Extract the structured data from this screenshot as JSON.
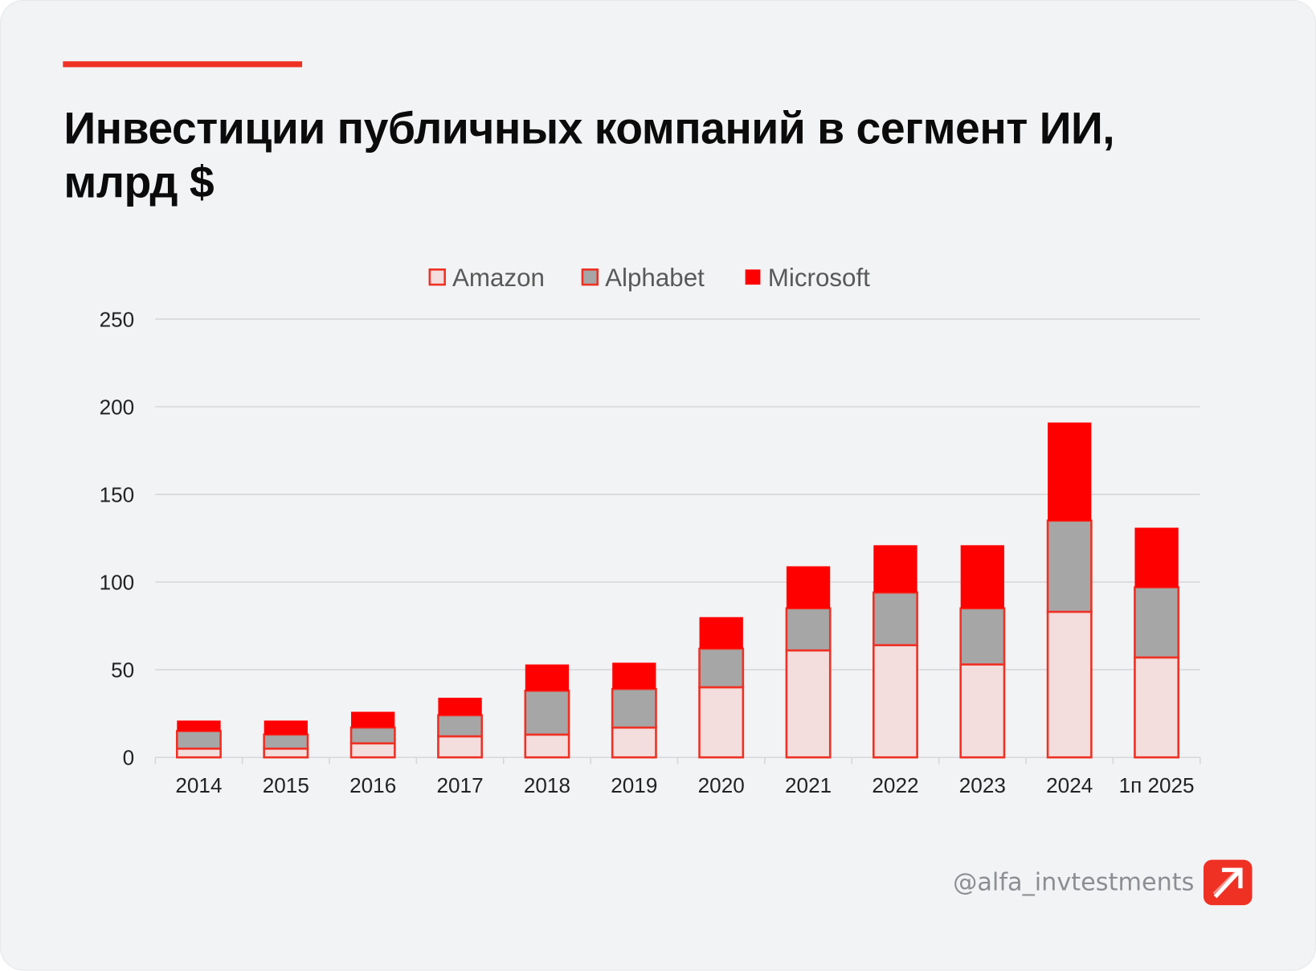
{
  "title": "Инвестиции публичных компаний в сегмент ИИ, млрд $",
  "watermark": "@alfa_invtestments",
  "colors": {
    "accent": "#ef3124",
    "amazon": "#f3dddd",
    "alphabet": "#a6a6a6",
    "microsoft": "#ff0000",
    "outline": "#ef3124"
  },
  "chart_data": {
    "type": "bar",
    "stacked": true,
    "title": "Инвестиции публичных компаний в сегмент ИИ, млрд $",
    "xlabel": "",
    "ylabel": "",
    "ylim": [
      0,
      250
    ],
    "yticks": [
      0,
      50,
      100,
      150,
      200,
      250
    ],
    "grid": true,
    "legend_position": "top-center",
    "categories": [
      "2014",
      "2015",
      "2016",
      "2017",
      "2018",
      "2019",
      "2020",
      "2021",
      "2022",
      "2023",
      "2024",
      "1п 2025"
    ],
    "series": [
      {
        "name": "Amazon",
        "values": [
          5,
          5,
          8,
          12,
          13,
          17,
          40,
          61,
          64,
          53,
          83,
          57
        ]
      },
      {
        "name": "Alphabet",
        "values": [
          10,
          8,
          9,
          12,
          25,
          22,
          22,
          24,
          30,
          32,
          52,
          40
        ]
      },
      {
        "name": "Microsoft",
        "values": [
          6,
          8,
          9,
          10,
          15,
          15,
          18,
          24,
          27,
          36,
          56,
          34
        ]
      }
    ]
  }
}
